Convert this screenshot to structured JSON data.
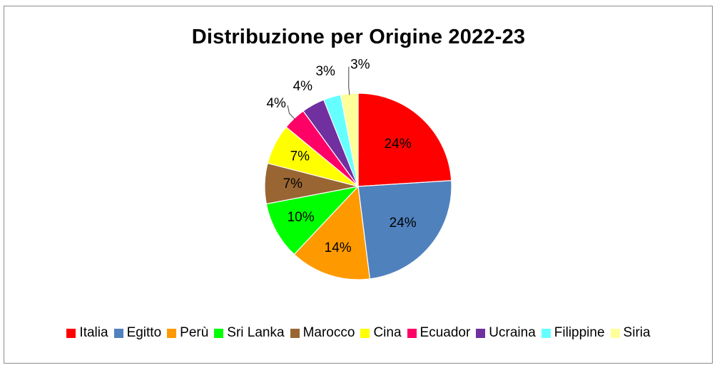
{
  "chart_data": {
    "type": "pie",
    "title": "Distribuzione per Origine 2022-23",
    "legend_position": "bottom",
    "slices": [
      {
        "label": "Italia",
        "value": 24,
        "display": "24%",
        "color": "#ff0000"
      },
      {
        "label": "Egitto",
        "value": 24,
        "display": "24%",
        "color": "#4f81bd"
      },
      {
        "label": "Perù",
        "value": 14,
        "display": "14%",
        "color": "#ff9900"
      },
      {
        "label": "Sri Lanka",
        "value": 10,
        "display": "10%",
        "color": "#00ff00"
      },
      {
        "label": "Marocco",
        "value": 7,
        "display": "7%",
        "color": "#996633"
      },
      {
        "label": "Cina",
        "value": 7,
        "display": "7%",
        "color": "#ffff00"
      },
      {
        "label": "Ecuador",
        "value": 4,
        "display": "4%",
        "color": "#ff0066"
      },
      {
        "label": "Ucraina",
        "value": 4,
        "display": "4%",
        "color": "#7030a0"
      },
      {
        "label": "Filippine",
        "value": 3,
        "display": "3%",
        "color": "#66ffff"
      },
      {
        "label": "Siria",
        "value": 3,
        "display": "3%",
        "color": "#ffff99"
      }
    ]
  }
}
